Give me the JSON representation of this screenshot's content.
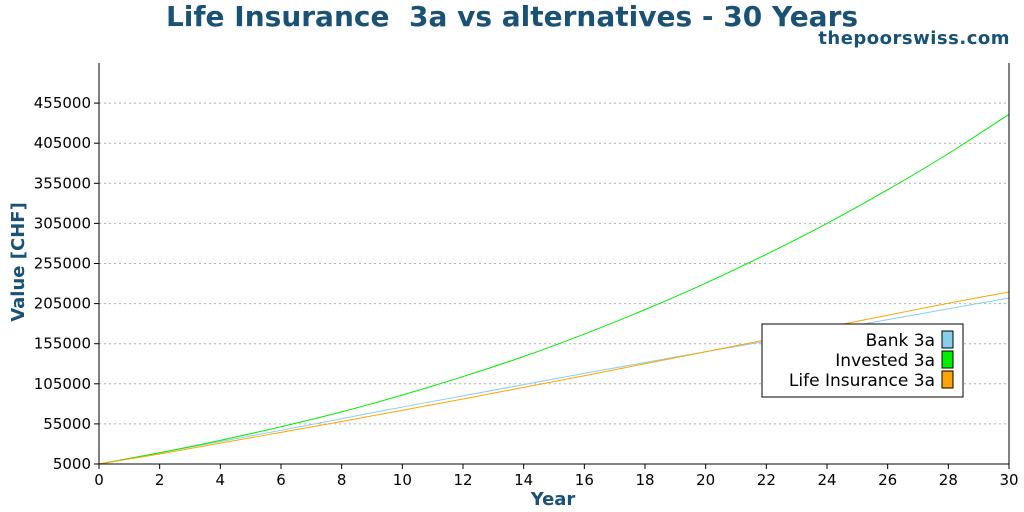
{
  "header": {
    "title": "Life Insurance  3a vs alternatives - 30 Years",
    "watermark": "thepoorswiss.com"
  },
  "chart_data": {
    "type": "line",
    "title": "Life Insurance  3a vs alternatives - 30 Years",
    "xlabel": "Year",
    "ylabel": "Value [CHF]",
    "xlim": [
      0,
      30
    ],
    "ylim": [
      5000,
      505000
    ],
    "xticks": [
      0,
      2,
      4,
      6,
      8,
      10,
      12,
      14,
      16,
      18,
      20,
      22,
      24,
      26,
      28,
      30
    ],
    "yticks": [
      5000,
      55000,
      105000,
      155000,
      205000,
      255000,
      305000,
      355000,
      405000,
      455000
    ],
    "grid": "horizontal dotted",
    "legend_position": "center-right",
    "x": [
      0,
      2,
      4,
      6,
      8,
      10,
      12,
      14,
      16,
      18,
      20,
      22,
      24,
      26,
      28,
      30
    ],
    "series": [
      {
        "name": "Bank 3a",
        "color": "#87ceeb",
        "values": [
          5000,
          19000,
          33000,
          47000,
          61500,
          76000,
          90000,
          104000,
          118000,
          131500,
          145000,
          158000,
          171500,
          185000,
          198500,
          212000
        ]
      },
      {
        "name": "Invested 3a",
        "color": "#00ee00",
        "values": [
          5000,
          19000,
          34500,
          51500,
          70000,
          91000,
          114000,
          139000,
          167000,
          197500,
          230500,
          266500,
          305000,
          347000,
          392000,
          441000
        ]
      },
      {
        "name": "Life Insurance 3a",
        "color": "#ffa500",
        "values": [
          5000,
          17500,
          31000,
          44500,
          58000,
          72000,
          86000,
          100500,
          115000,
          130000,
          145000,
          160000,
          175500,
          190500,
          205500,
          219500
        ]
      }
    ]
  }
}
